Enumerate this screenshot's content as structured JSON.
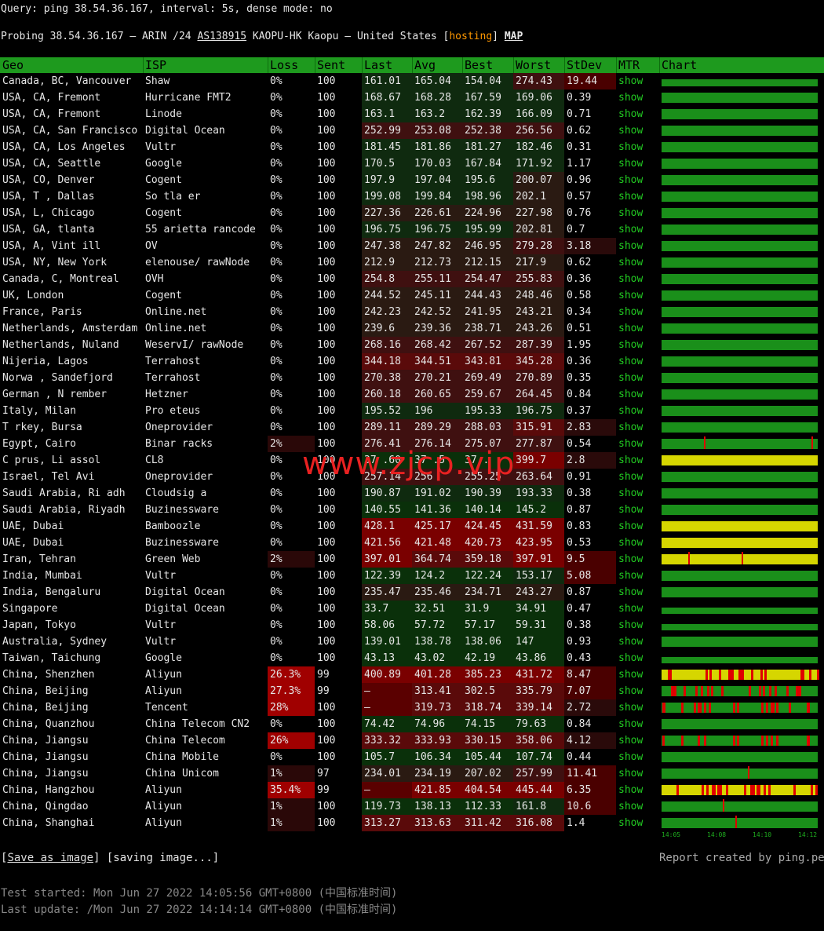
{
  "query_line": "Query: ping 38.54.36.167, interval: 5s, dense mode: no",
  "probe": {
    "prefix": "Probing 38.54.36.167 — ARIN /24 ",
    "asn": "AS138915",
    "middle": " KAOPU-HK Kaopu — United States [",
    "hosting": "hosting",
    "suffix": "] ",
    "map": "MAP"
  },
  "columns": [
    "Geo",
    "ISP",
    "Loss",
    "Sent",
    "Last",
    "Avg",
    "Best",
    "Worst",
    "StDev",
    "MTR",
    "Chart"
  ],
  "mtr_label": "show",
  "colors": {
    "header_green": "#1e9a1e",
    "chart_green": "#1a8f1a",
    "chart_yellow": "#d6d600",
    "spike_red": "#e00000"
  },
  "rows": [
    {
      "geo": "Canada, BC, Vancouver",
      "isp": "Shaw",
      "loss": "0%",
      "sent": "100",
      "last": "161.01",
      "avg": "165.04",
      "best": "154.04",
      "worst": "274.43",
      "stdev": "19.44",
      "chart": "dotted"
    },
    {
      "geo": "USA, CA, Fremont",
      "isp": "Hurricane FMT2",
      "loss": "0%",
      "sent": "100",
      "last": "168.67",
      "avg": "168.28",
      "best": "167.59",
      "worst": "169.06",
      "stdev": "0.39",
      "chart": "green"
    },
    {
      "geo": "USA, CA, Fremont",
      "isp": "Linode",
      "loss": "0%",
      "sent": "100",
      "last": "163.1",
      "avg": "163.2",
      "best": "162.39",
      "worst": "166.09",
      "stdev": "0.71",
      "chart": "green"
    },
    {
      "geo": "USA, CA, San Francisco",
      "isp": "Digital Ocean",
      "loss": "0%",
      "sent": "100",
      "last": "252.99",
      "avg": "253.08",
      "best": "252.38",
      "worst": "256.56",
      "stdev": "0.62",
      "chart": "green"
    },
    {
      "geo": "USA, CA, Los Angeles",
      "isp": "Vultr",
      "loss": "0%",
      "sent": "100",
      "last": "181.45",
      "avg": "181.86",
      "best": "181.27",
      "worst": "182.46",
      "stdev": "0.31",
      "chart": "green"
    },
    {
      "geo": "USA, CA, Seattle",
      "isp": "Google",
      "loss": "0%",
      "sent": "100",
      "last": "170.5",
      "avg": "170.03",
      "best": "167.84",
      "worst": "171.92",
      "stdev": "1.17",
      "chart": "green"
    },
    {
      "geo": "USA, CO, Denver",
      "isp": "Cogent",
      "loss": "0%",
      "sent": "100",
      "last": "197.9",
      "avg": "197.04",
      "best": "195.6",
      "worst": "200.07",
      "stdev": "0.96",
      "chart": "green"
    },
    {
      "geo": "USA, T , Dallas",
      "isp": "So tla er",
      "loss": "0%",
      "sent": "100",
      "last": "199.08",
      "avg": "199.84",
      "best": "198.96",
      "worst": "202.1",
      "stdev": "0.57",
      "chart": "green"
    },
    {
      "geo": "USA, L, Chicago",
      "isp": "Cogent",
      "loss": "0%",
      "sent": "100",
      "last": "227.36",
      "avg": "226.61",
      "best": "224.96",
      "worst": "227.98",
      "stdev": "0.76",
      "chart": "green"
    },
    {
      "geo": "USA, GA, tlanta",
      "isp": "55 arietta rancode",
      "loss": "0%",
      "sent": "100",
      "last": "196.75",
      "avg": "196.75",
      "best": "195.99",
      "worst": "202.81",
      "stdev": "0.7",
      "chart": "green"
    },
    {
      "geo": "USA, A, Vint ill",
      "isp": "OV",
      "loss": "0%",
      "sent": "100",
      "last": "247.38",
      "avg": "247.82",
      "best": "246.95",
      "worst": "279.28",
      "stdev": "3.18",
      "chart": "green"
    },
    {
      "geo": "USA, NY, New York",
      "isp": "elenouse/ rawNode",
      "loss": "0%",
      "sent": "100",
      "last": "212.9",
      "avg": "212.73",
      "best": "212.15",
      "worst": "217.9",
      "stdev": "0.62",
      "chart": "green"
    },
    {
      "geo": "Canada, C, Montreal",
      "isp": "OVH",
      "loss": "0%",
      "sent": "100",
      "last": "254.8",
      "avg": "255.11",
      "best": "254.47",
      "worst": "255.83",
      "stdev": "0.36",
      "chart": "green"
    },
    {
      "geo": "UK, London",
      "isp": "Cogent",
      "loss": "0%",
      "sent": "100",
      "last": "244.52",
      "avg": "245.11",
      "best": "244.43",
      "worst": "248.46",
      "stdev": "0.58",
      "chart": "green"
    },
    {
      "geo": "France, Paris",
      "isp": "Online.net",
      "loss": "0%",
      "sent": "100",
      "last": "242.23",
      "avg": "242.52",
      "best": "241.95",
      "worst": "243.21",
      "stdev": "0.34",
      "chart": "green"
    },
    {
      "geo": "Netherlands, Amsterdam",
      "isp": "Online.net",
      "loss": "0%",
      "sent": "100",
      "last": "239.6",
      "avg": "239.36",
      "best": "238.71",
      "worst": "243.26",
      "stdev": "0.51",
      "chart": "green"
    },
    {
      "geo": "Netherlands, Nuland",
      "isp": "WeservI/ rawNode",
      "loss": "0%",
      "sent": "100",
      "last": "268.16",
      "avg": "268.42",
      "best": "267.52",
      "worst": "287.39",
      "stdev": "1.95",
      "chart": "green"
    },
    {
      "geo": "Nijeria, Lagos",
      "isp": "Terrahost",
      "loss": "0%",
      "sent": "100",
      "last": "344.18",
      "avg": "344.51",
      "best": "343.81",
      "worst": "345.28",
      "stdev": "0.36",
      "chart": "green"
    },
    {
      "geo": "Norwa , Sandefjord",
      "isp": "Terrahost",
      "loss": "0%",
      "sent": "100",
      "last": "270.38",
      "avg": "270.21",
      "best": "269.49",
      "worst": "270.89",
      "stdev": "0.35",
      "chart": "green"
    },
    {
      "geo": "German , N rember",
      "isp": "Hetzner",
      "loss": "0%",
      "sent": "100",
      "last": "260.18",
      "avg": "260.65",
      "best": "259.67",
      "worst": "264.45",
      "stdev": "0.84",
      "chart": "green"
    },
    {
      "geo": "Italy, Milan",
      "isp": "Pro eteus",
      "loss": "0%",
      "sent": "100",
      "last": "195.52",
      "avg": "196",
      "best": "195.33",
      "worst": "196.75",
      "stdev": "0.37",
      "chart": "green"
    },
    {
      "geo": "T rkey, Bursa",
      "isp": "Oneprovider",
      "loss": "0%",
      "sent": "100",
      "last": "289.11",
      "avg": "289.29",
      "best": "288.03",
      "worst": "315.91",
      "stdev": "2.83",
      "chart": "green"
    },
    {
      "geo": "Egypt, Cairo",
      "isp": "Binar racks",
      "loss": "2%",
      "sent": "100",
      "last": "276.41",
      "avg": "276.14",
      "best": "275.07",
      "worst": "277.87",
      "stdev": "0.54",
      "chart": "green-spikes2"
    },
    {
      "geo": "C prus, Li assol",
      "isp": "CL8",
      "loss": "0%",
      "sent": "100",
      "last": "37 .60",
      "avg": "37 .5",
      "best": "37 .",
      "worst": "399.7",
      "stdev": "2.8",
      "chart": "yellow"
    },
    {
      "geo": "Israel, Tel Avi",
      "isp": "Oneprovider",
      "loss": "0%",
      "sent": "100",
      "last": "257.14",
      "avg": "256",
      "best": "255.25",
      "worst": "263.64",
      "stdev": "0.91",
      "chart": "green"
    },
    {
      "geo": "Saudi Arabia, Ri adh",
      "isp": "Cloudsig a",
      "loss": "0%",
      "sent": "100",
      "last": "190.87",
      "avg": "191.02",
      "best": "190.39",
      "worst": "193.33",
      "stdev": "0.38",
      "chart": "green"
    },
    {
      "geo": "Saudi Arabia, Riyadh",
      "isp": "Buzinessware",
      "loss": "0%",
      "sent": "100",
      "last": "140.55",
      "avg": "141.36",
      "best": "140.14",
      "worst": "145.2",
      "stdev": "0.87",
      "chart": "green"
    },
    {
      "geo": "UAE, Dubai",
      "isp": "Bamboozle",
      "loss": "0%",
      "sent": "100",
      "last": "428.1",
      "avg": "425.17",
      "best": "424.45",
      "worst": "431.59",
      "stdev": "0.83",
      "chart": "yellow"
    },
    {
      "geo": "UAE, Dubai",
      "isp": "Buzinessware",
      "loss": "0%",
      "sent": "100",
      "last": "421.56",
      "avg": "421.48",
      "best": "420.73",
      "worst": "423.95",
      "stdev": "0.53",
      "chart": "yellow"
    },
    {
      "geo": "Iran, Tehran",
      "isp": "Green Web",
      "loss": "2%",
      "sent": "100",
      "last": "397.01",
      "avg": "364.74",
      "best": "359.18",
      "worst": "397.91",
      "stdev": "9.5",
      "chart": "yellow-spikes"
    },
    {
      "geo": "India, Mumbai",
      "isp": "Vultr",
      "loss": "0%",
      "sent": "100",
      "last": "122.39",
      "avg": "124.2",
      "best": "122.24",
      "worst": "153.17",
      "stdev": "5.08",
      "chart": "green"
    },
    {
      "geo": "India, Bengaluru",
      "isp": "Digital Ocean",
      "loss": "0%",
      "sent": "100",
      "last": "235.47",
      "avg": "235.46",
      "best": "234.71",
      "worst": "243.27",
      "stdev": "0.87",
      "chart": "green"
    },
    {
      "geo": "Singapore",
      "isp": "Digital Ocean",
      "loss": "0%",
      "sent": "100",
      "last": "33.7",
      "avg": "32.51",
      "best": "31.9",
      "worst": "34.91",
      "stdev": "0.47",
      "chart": "thin"
    },
    {
      "geo": "Japan, Tokyo",
      "isp": "Vultr",
      "loss": "0%",
      "sent": "100",
      "last": "58.06",
      "avg": "57.72",
      "best": "57.17",
      "worst": "59.31",
      "stdev": "0.38",
      "chart": "thin"
    },
    {
      "geo": "Australia, Sydney",
      "isp": "Vultr",
      "loss": "0%",
      "sent": "100",
      "last": "139.01",
      "avg": "138.78",
      "best": "138.06",
      "worst": "147",
      "stdev": "0.93",
      "chart": "green"
    },
    {
      "geo": "Taiwan, Taichung",
      "isp": "Google",
      "loss": "0%",
      "sent": "100",
      "last": "43.13",
      "avg": "43.02",
      "best": "42.19",
      "worst": "43.86",
      "stdev": "0.43",
      "chart": "thin"
    },
    {
      "geo": "China, Shenzhen",
      "isp": "Aliyun",
      "loss": "26.3%",
      "sent": "99",
      "last": "400.89",
      "avg": "401.28",
      "best": "385.23",
      "worst": "431.72",
      "stdev": "8.47",
      "chart": "yellow-red"
    },
    {
      "geo": "China, Beijing",
      "isp": "Aliyun",
      "loss": "27.3%",
      "sent": "99",
      "last": "–",
      "avg": "313.41",
      "best": "302.5",
      "worst": "335.79",
      "stdev": "7.07",
      "chart": "green-red"
    },
    {
      "geo": "China, Beijing",
      "isp": "Tencent",
      "loss": "28%",
      "sent": "100",
      "last": "–",
      "avg": "319.73",
      "best": "318.74",
      "worst": "339.14",
      "stdev": "2.72",
      "chart": "green-red"
    },
    {
      "geo": "China, Quanzhou",
      "isp": "China Telecom CN2",
      "loss": "0%",
      "sent": "100",
      "last": "74.42",
      "avg": "74.96",
      "best": "74.15",
      "worst": "79.63",
      "stdev": "0.84",
      "chart": "green"
    },
    {
      "geo": "China, Jiangsu",
      "isp": "China Telecom",
      "loss": "26%",
      "sent": "100",
      "last": "333.32",
      "avg": "333.93",
      "best": "330.15",
      "worst": "358.06",
      "stdev": "4.12",
      "chart": "green-red-sparse"
    },
    {
      "geo": "China, Jiangsu",
      "isp": "China Mobile",
      "loss": "0%",
      "sent": "100",
      "last": "105.7",
      "avg": "106.34",
      "best": "105.44",
      "worst": "107.74",
      "stdev": "0.44",
      "chart": "green"
    },
    {
      "geo": "China, Jiangsu",
      "isp": "China Unicom",
      "loss": "1%",
      "sent": "97",
      "last": "234.01",
      "avg": "234.19",
      "best": "207.02",
      "worst": "257.99",
      "stdev": "11.41",
      "chart": "green-spikes1"
    },
    {
      "geo": "China, Hangzhou",
      "isp": "Aliyun",
      "loss": "35.4%",
      "sent": "99",
      "last": "–",
      "avg": "421.85",
      "best": "404.54",
      "worst": "445.44",
      "stdev": "6.35",
      "chart": "yellow-red"
    },
    {
      "geo": "China, Qingdao",
      "isp": "Aliyun",
      "loss": "1%",
      "sent": "100",
      "last": "119.73",
      "avg": "138.13",
      "best": "112.33",
      "worst": "161.8",
      "stdev": "10.6",
      "chart": "green-spikes1"
    },
    {
      "geo": "China, Shanghai",
      "isp": "Aliyun",
      "loss": "1%",
      "sent": "100",
      "last": "313.27",
      "avg": "313.63",
      "best": "311.42",
      "worst": "316.08",
      "stdev": "1.4",
      "chart": "green-spikes1"
    }
  ],
  "time_axis": [
    "14:05",
    "14:08",
    "14:10",
    "14:12"
  ],
  "footer": {
    "save_link": "Save as image",
    "saving": " [saving image...]",
    "credit": "Report created by ping.pe",
    "started": "Test started: Mon Jun 27 2022 14:05:56 GMT+0800 (中国标准时间)",
    "updated": "Last update: /Mon Jun 27 2022 14:14:14 GMT+0800 (中国标准时间)"
  },
  "watermark": "www.zjcp.vip"
}
